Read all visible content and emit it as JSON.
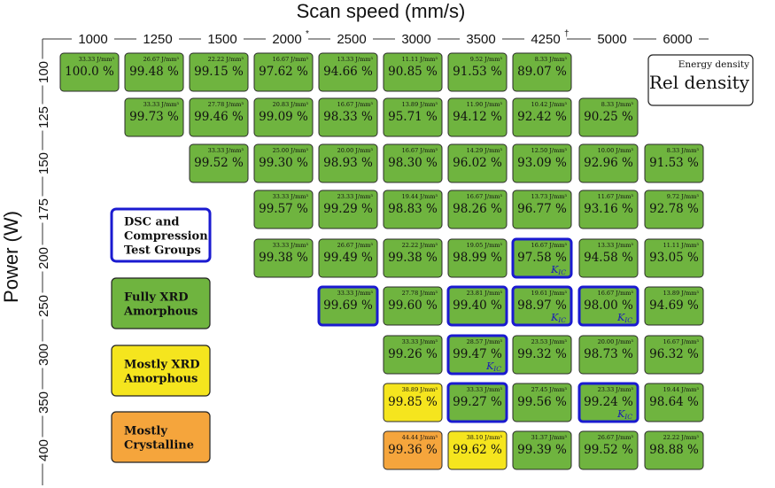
{
  "chart_data": {
    "type": "heatmap",
    "xlabel": "Scan speed (mm/s)",
    "ylabel": "Power (W)",
    "x": [
      1000,
      1250,
      1500,
      2000,
      2500,
      3000,
      3500,
      4250,
      5000,
      6000
    ],
    "x_tick_labels": [
      "1000",
      "1250",
      "1500",
      "2000",
      "2500",
      "3000",
      "3500",
      "4250",
      "5000",
      "6000"
    ],
    "x_marks": {
      "2000": "*",
      "4250": "†"
    },
    "y": [
      100,
      125,
      150,
      175,
      200,
      250,
      300,
      350,
      400
    ],
    "y_tick_labels": [
      "100",
      "125",
      "150",
      "175",
      "200",
      "250",
      "300",
      "350",
      "400"
    ],
    "key": {
      "small": "Energy density",
      "big": "Rel density"
    },
    "energy_unit": " J/mm³",
    "density_unit": " %",
    "kic_label": "KIC",
    "legend": [
      {
        "lines": [
          "DSC and",
          "Compression",
          "Test Groups"
        ],
        "fill": "#ffffff",
        "stroke": "#1a1ad0"
      },
      {
        "lines": [
          "Fully XRD",
          "Amorphous"
        ],
        "fill": "#6fb43f",
        "stroke": "#222222"
      },
      {
        "lines": [
          "Mostly XRD",
          "Amorphous"
        ],
        "fill": "#f5e51e",
        "stroke": "#222222"
      },
      {
        "lines": [
          "Mostly",
          "Crystalline"
        ],
        "fill": "#f5a53c",
        "stroke": "#222222"
      }
    ],
    "colors": {
      "green": "#6fb43f",
      "yellow": "#f5e51e",
      "orange": "#f5a53c",
      "highlight": "#1a1ad0"
    },
    "cells": [
      {
        "p": 100,
        "s": 1000,
        "e": "33.33",
        "d": "100.0",
        "c": "green"
      },
      {
        "p": 100,
        "s": 1250,
        "e": "26.67",
        "d": "99.48",
        "c": "green"
      },
      {
        "p": 100,
        "s": 1500,
        "e": "22.22",
        "d": "99.15",
        "c": "green"
      },
      {
        "p": 100,
        "s": 2000,
        "e": "16.67",
        "d": "97.62",
        "c": "green"
      },
      {
        "p": 100,
        "s": 2500,
        "e": "13.33",
        "d": "94.66",
        "c": "green"
      },
      {
        "p": 100,
        "s": 3000,
        "e": "11.11",
        "d": "90.85",
        "c": "green"
      },
      {
        "p": 100,
        "s": 3500,
        "e": "9.52",
        "d": "91.53",
        "c": "green"
      },
      {
        "p": 100,
        "s": 4250,
        "e": "8.33",
        "d": "89.07",
        "c": "green"
      },
      {
        "p": 125,
        "s": 1250,
        "e": "33.33",
        "d": "99.73",
        "c": "green"
      },
      {
        "p": 125,
        "s": 1500,
        "e": "27.78",
        "d": "99.46",
        "c": "green"
      },
      {
        "p": 125,
        "s": 2000,
        "e": "20.83",
        "d": "99.09",
        "c": "green"
      },
      {
        "p": 125,
        "s": 2500,
        "e": "16.67",
        "d": "98.33",
        "c": "green"
      },
      {
        "p": 125,
        "s": 3000,
        "e": "13.89",
        "d": "95.71",
        "c": "green"
      },
      {
        "p": 125,
        "s": 3500,
        "e": "11.90",
        "d": "94.12",
        "c": "green"
      },
      {
        "p": 125,
        "s": 4250,
        "e": "10.42",
        "d": "92.42",
        "c": "green"
      },
      {
        "p": 125,
        "s": 5000,
        "e": "8.33",
        "d": "90.25",
        "c": "green"
      },
      {
        "p": 150,
        "s": 1500,
        "e": "33.33",
        "d": "99.52",
        "c": "green"
      },
      {
        "p": 150,
        "s": 2000,
        "e": "25.00",
        "d": "99.30",
        "c": "green"
      },
      {
        "p": 150,
        "s": 2500,
        "e": "20.00",
        "d": "98.93",
        "c": "green"
      },
      {
        "p": 150,
        "s": 3000,
        "e": "16.67",
        "d": "98.30",
        "c": "green"
      },
      {
        "p": 150,
        "s": 3500,
        "e": "14.29",
        "d": "96.02",
        "c": "green"
      },
      {
        "p": 150,
        "s": 4250,
        "e": "12.50",
        "d": "93.09",
        "c": "green"
      },
      {
        "p": 150,
        "s": 5000,
        "e": "10.00",
        "d": "92.96",
        "c": "green"
      },
      {
        "p": 150,
        "s": 6000,
        "e": "8.33",
        "d": "91.53",
        "c": "green"
      },
      {
        "p": 175,
        "s": 2000,
        "e": "33.33",
        "d": "99.57",
        "c": "green"
      },
      {
        "p": 175,
        "s": 2500,
        "e": "23.33",
        "d": "99.29",
        "c": "green"
      },
      {
        "p": 175,
        "s": 3000,
        "e": "19.44",
        "d": "98.83",
        "c": "green"
      },
      {
        "p": 175,
        "s": 3500,
        "e": "16.67",
        "d": "98.26",
        "c": "green"
      },
      {
        "p": 175,
        "s": 4250,
        "e": "13.73",
        "d": "96.77",
        "c": "green"
      },
      {
        "p": 175,
        "s": 5000,
        "e": "11.67",
        "d": "93.16",
        "c": "green"
      },
      {
        "p": 175,
        "s": 6000,
        "e": "9.72",
        "d": "92.78",
        "c": "green"
      },
      {
        "p": 200,
        "s": 2000,
        "e": "33.33",
        "d": "99.38",
        "c": "green"
      },
      {
        "p": 200,
        "s": 2500,
        "e": "26.67",
        "d": "99.49",
        "c": "green"
      },
      {
        "p": 200,
        "s": 3000,
        "e": "22.22",
        "d": "99.38",
        "c": "green"
      },
      {
        "p": 200,
        "s": 3500,
        "e": "19.05",
        "d": "98.99",
        "c": "green"
      },
      {
        "p": 200,
        "s": 4250,
        "e": "16.67",
        "d": "97.58",
        "c": "green",
        "hl": true,
        "kic": true
      },
      {
        "p": 200,
        "s": 5000,
        "e": "13.33",
        "d": "94.58",
        "c": "green"
      },
      {
        "p": 200,
        "s": 6000,
        "e": "11.11",
        "d": "93.05",
        "c": "green"
      },
      {
        "p": 250,
        "s": 2500,
        "e": "33.33",
        "d": "99.69",
        "c": "green",
        "hl": true
      },
      {
        "p": 250,
        "s": 3000,
        "e": "27.78",
        "d": "99.60",
        "c": "green"
      },
      {
        "p": 250,
        "s": 3500,
        "e": "23.81",
        "d": "99.40",
        "c": "green",
        "hl": true
      },
      {
        "p": 250,
        "s": 4250,
        "e": "19.61",
        "d": "98.97",
        "c": "green",
        "hl": true,
        "kic": true
      },
      {
        "p": 250,
        "s": 5000,
        "e": "16.67",
        "d": "98.00",
        "c": "green",
        "hl": true,
        "kic": true
      },
      {
        "p": 250,
        "s": 6000,
        "e": "13.89",
        "d": "94.69",
        "c": "green"
      },
      {
        "p": 300,
        "s": 3000,
        "e": "33.33",
        "d": "99.26",
        "c": "green"
      },
      {
        "p": 300,
        "s": 3500,
        "e": "28.57",
        "d": "99.47",
        "c": "green",
        "hl": true,
        "kic": true
      },
      {
        "p": 300,
        "s": 4250,
        "e": "23.53",
        "d": "99.32",
        "c": "green"
      },
      {
        "p": 300,
        "s": 5000,
        "e": "20.00",
        "d": "98.73",
        "c": "green"
      },
      {
        "p": 300,
        "s": 6000,
        "e": "16.67",
        "d": "96.32",
        "c": "green"
      },
      {
        "p": 350,
        "s": 3000,
        "e": "38.89",
        "d": "99.85",
        "c": "yellow"
      },
      {
        "p": 350,
        "s": 3500,
        "e": "33.33",
        "d": "99.27",
        "c": "green",
        "hl": true
      },
      {
        "p": 350,
        "s": 4250,
        "e": "27.45",
        "d": "99.56",
        "c": "green"
      },
      {
        "p": 350,
        "s": 5000,
        "e": "23.33",
        "d": "99.24",
        "c": "green",
        "hl": true,
        "kic": true
      },
      {
        "p": 350,
        "s": 6000,
        "e": "19.44",
        "d": "98.64",
        "c": "green"
      },
      {
        "p": 400,
        "s": 3000,
        "e": "44.44",
        "d": "99.36",
        "c": "orange"
      },
      {
        "p": 400,
        "s": 3500,
        "e": "38.10",
        "d": "99.62",
        "c": "yellow"
      },
      {
        "p": 400,
        "s": 4250,
        "e": "31.37",
        "d": "99.39",
        "c": "green"
      },
      {
        "p": 400,
        "s": 5000,
        "e": "26.67",
        "d": "99.52",
        "c": "green"
      },
      {
        "p": 400,
        "s": 6000,
        "e": "22.22",
        "d": "98.88",
        "c": "green"
      }
    ]
  }
}
